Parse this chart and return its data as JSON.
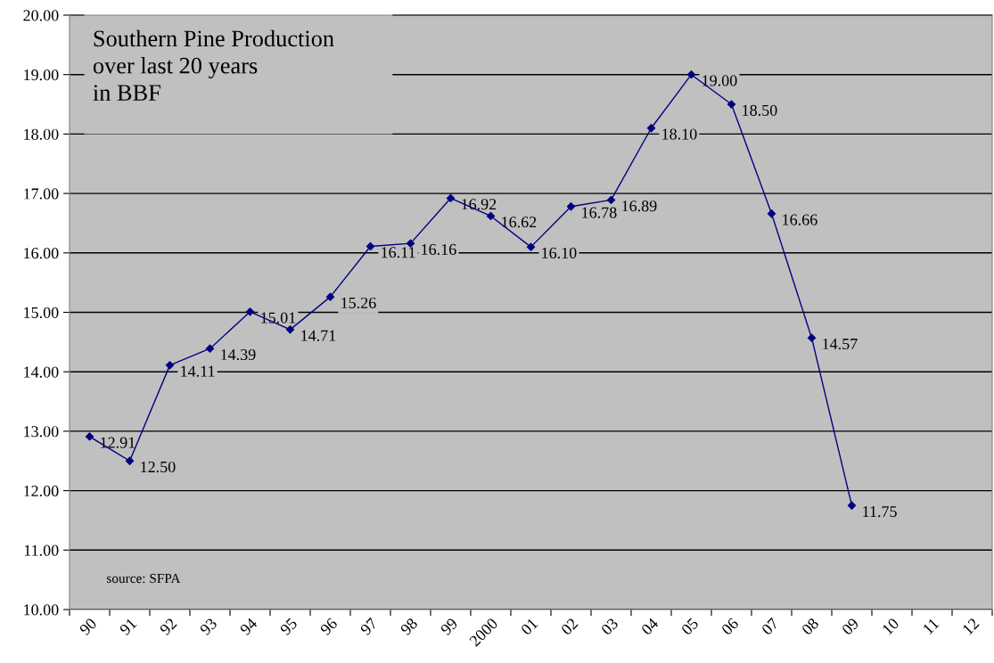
{
  "chart_data": {
    "type": "line",
    "title": "Southern Pine Production\nover last 20 years\nin BBF",
    "categories": [
      "90",
      "91",
      "92",
      "93",
      "94",
      "95",
      "96",
      "97",
      "98",
      "99",
      "2000",
      "01",
      "02",
      "03",
      "04",
      "05",
      "06",
      "07",
      "08",
      "09",
      "10",
      "11",
      "12"
    ],
    "series": [
      {
        "color": "#000080",
        "values": [
          12.91,
          12.5,
          14.11,
          14.39,
          15.01,
          14.71,
          15.26,
          16.11,
          16.16,
          16.92,
          16.62,
          16.1,
          16.78,
          16.89,
          18.1,
          19.0,
          18.5,
          16.66,
          14.57,
          11.75,
          null,
          null,
          null
        ],
        "value_labels": [
          "12.91",
          "12.50",
          "14.11",
          "14.39",
          "15.01",
          "14.71",
          "15.26",
          "16.11",
          "16.16",
          "16.92",
          "16.62",
          "16.10",
          "16.78",
          "16.89",
          "18.10",
          "19.00",
          "18.50",
          "16.66",
          "14.57",
          "11.75",
          null,
          null,
          null
        ]
      }
    ],
    "ylim": [
      10,
      20
    ],
    "yticks": [
      {
        "value": 10,
        "label": "10.00"
      },
      {
        "value": 11,
        "label": "11.00"
      },
      {
        "value": 12,
        "label": "12.00"
      },
      {
        "value": 13,
        "label": "13.00"
      },
      {
        "value": 14,
        "label": "14.00"
      },
      {
        "value": 15,
        "label": "15.00"
      },
      {
        "value": 16,
        "label": "16.00"
      },
      {
        "value": 17,
        "label": "17.00"
      },
      {
        "value": 18,
        "label": "18.00"
      },
      {
        "value": 19,
        "label": "19.00"
      },
      {
        "value": 20,
        "label": "20.00"
      }
    ],
    "grid": "y",
    "marker": "diamond",
    "line_style": "solid",
    "legend": false,
    "annotations": [
      "source: SFPA"
    ]
  }
}
